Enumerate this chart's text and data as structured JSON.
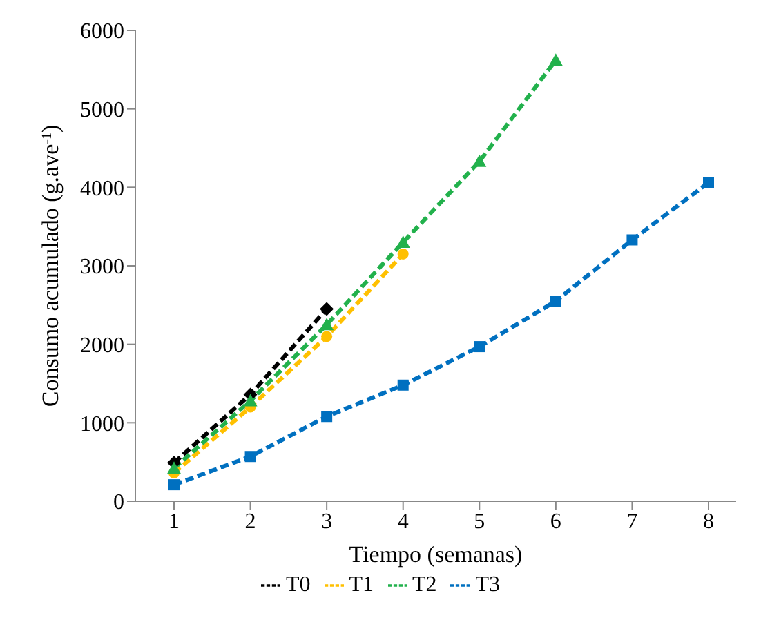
{
  "chart_data": {
    "type": "line",
    "xlabel": "Tiempo (semanas)",
    "ylabel": "Consumo acumulado (g.ave$^{-1}$)",
    "categories": [
      "1",
      "2",
      "3",
      "4",
      "5",
      "6",
      "7",
      "8"
    ],
    "ylim": [
      0,
      6000
    ],
    "yticks": [
      0,
      1000,
      2000,
      3000,
      4000,
      5000,
      6000
    ],
    "grid": false,
    "legend": "bottom",
    "line_style": "dashed",
    "series": [
      {
        "name": "T0",
        "color": "#000000",
        "marker": "diamond",
        "values": [
          490,
          1360,
          2450,
          null,
          null,
          null,
          null,
          null
        ]
      },
      {
        "name": "T1",
        "color": "#ffc000",
        "marker": "circle",
        "values": [
          360,
          1200,
          2100,
          3150,
          null,
          null,
          null,
          null
        ]
      },
      {
        "name": "T2",
        "color": "#22b14c",
        "marker": "triangle",
        "values": [
          420,
          1280,
          2250,
          3300,
          4330,
          5620,
          null,
          null
        ]
      },
      {
        "name": "T3",
        "color": "#0070c0",
        "marker": "square",
        "values": [
          210,
          570,
          1080,
          1480,
          1970,
          2550,
          3330,
          4060
        ]
      }
    ]
  }
}
